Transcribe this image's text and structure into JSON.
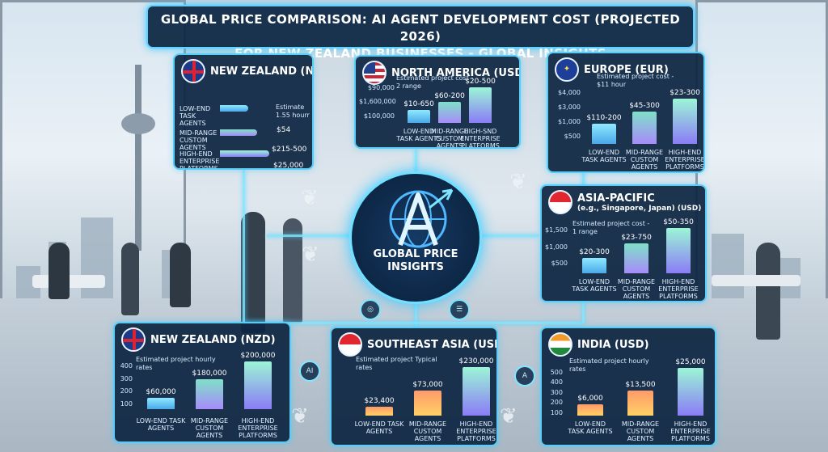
{
  "title": {
    "line1": "GLOBAL PRICE COMPARISON: AI AGENT DEVELOPMENT COST (PROJECTED 2026)",
    "line2": "FOR NEW ZEALAND BUSINESSES - GLOBAL INSIGHTS"
  },
  "hub": {
    "line1": "GLOBAL PRICE",
    "line2": "INSIGHTS"
  },
  "colors": {
    "panel_bg": "#0d2642",
    "glow": "#59cdf5",
    "bar_gradient_start": "#4fd4ff",
    "bar_gradient_end": "#a78bfa"
  },
  "panels": {
    "nz_top": {
      "title": "NEW ZEALAND (NZD)",
      "flag_icon": "nz-flag-icon",
      "note": "Estimate 1.55 hourr",
      "labels": [
        "LOW-END TASK AGENTS",
        "MID-RANGE CUSTOM AGENTS",
        "HIGH-END ENTERPRISE PLATFORMS"
      ],
      "values": [
        "",
        "$54",
        "$215-500"
      ],
      "extra": "$25,000",
      "fill": [
        0.55,
        0.72,
        0.95
      ]
    },
    "north_america": {
      "title": "NORTH AMERICA (USD)",
      "flag_icon": "us-flag-icon",
      "note": "Estimated project cost - 2 range",
      "ticks": [
        "$90,000",
        "$1,600,000",
        "$100,000"
      ],
      "categories": [
        "LOW-END TASK AGENTS",
        "MID-RANGE CUSTOM AGENTS",
        "HIGH-SND ENTERPRISE PLATFORMS"
      ],
      "values": [
        "$10-650",
        "$60-200",
        "$20-500"
      ],
      "fill": [
        0.3,
        0.5,
        0.85
      ]
    },
    "europe": {
      "title": "EUROPE (EUR)",
      "flag_icon": "eu-flag-icon",
      "note": "Estimated project cost - $11 hour",
      "ticks": [
        "$4,000",
        "$3,000",
        "$1,000",
        "$500"
      ],
      "categories": [
        "LOW-END TASK AGENTS",
        "MID-RANGE CUSTOM AGENTS",
        "HIGH-END ENTERPRISE PLATFORMS"
      ],
      "values": [
        "$110-200",
        "$45-300",
        "$23-300"
      ],
      "fill": [
        0.35,
        0.55,
        0.78
      ]
    },
    "asia_pacific": {
      "title": "ASIA-PACIFIC",
      "subtitle": "(e.g., Singapore, Japan) (USD)",
      "flag_icon": "singapore-flag-icon",
      "note": "Estimated project cost - 1 range",
      "ticks": [
        "$1,500",
        "$1,000",
        "$500"
      ],
      "categories": [
        "LOW-END TASK AGENTS",
        "MID-RANGE CUSTOM AGENTS",
        "HIGH-END ENTERPRISE PLATFORMS"
      ],
      "values": [
        "$20-300",
        "$23-750",
        "$50-350"
      ],
      "fill": [
        0.3,
        0.6,
        0.9
      ]
    },
    "nz_bottom": {
      "title": "NEW ZEALAND (NZD)",
      "flag_icon": "nz-flag-icon",
      "note": "Estimated project hourly rates",
      "ticks": [
        "400",
        "300",
        "200",
        "100"
      ],
      "categories": [
        "LOW-END TASK AGENTS",
        "MID-RANGE CUSTOM AGENTS",
        "HIGH-END ENTERPRISE PLATFORMS"
      ],
      "values": [
        "$60,000",
        "$180,000",
        "$200,000"
      ],
      "fill": [
        0.22,
        0.6,
        0.95
      ]
    },
    "southeast_asia": {
      "title": "SOUTHEAST ASIA (USD)",
      "flag_icon": "singapore-flag-icon",
      "note": "Estimated project Typical rates",
      "categories": [
        "LOW-END TASK AGENTS",
        "MID-RANGE CUSTOM AGENTS",
        "HIGH-END ENTERPRISE PLATFORMS"
      ],
      "values": [
        "$23,400",
        "$73,000",
        "$230,000"
      ],
      "fill": [
        0.18,
        0.5,
        0.97
      ]
    },
    "india": {
      "title": "INDIA (USD)",
      "flag_icon": "india-flag-icon",
      "note": "Estimated project hourly rates",
      "ticks": [
        "500",
        "400",
        "300",
        "200",
        "100"
      ],
      "categories": [
        "LOW-END TASK AGENTS",
        "MID-RANGE CUSTOM AGENTS",
        "HIGH-END ENTERPRISE PLATFORMS"
      ],
      "values": [
        "$6,000",
        "$13,500",
        "$25,000"
      ],
      "fill": [
        0.22,
        0.5,
        0.95
      ]
    }
  },
  "nodes": [
    "AI",
    "A"
  ]
}
